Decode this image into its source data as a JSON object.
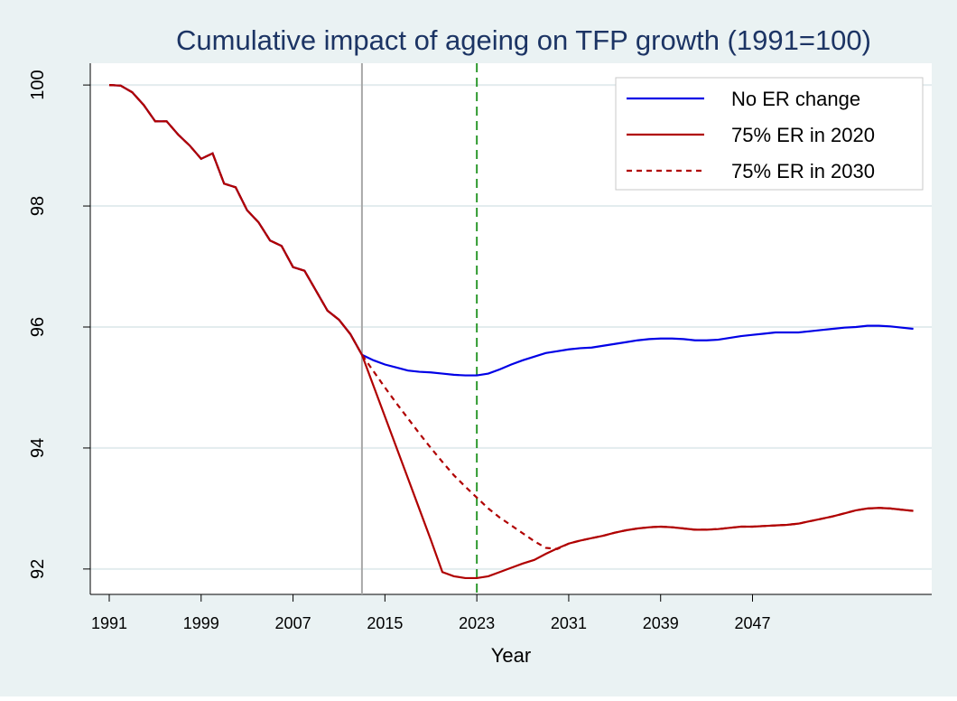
{
  "chart_data": {
    "type": "line",
    "title": "Cumulative impact of ageing on TFP growth (1991=100)",
    "x_label": "Year",
    "x": [
      1991,
      1992,
      1993,
      1994,
      1995,
      1996,
      1997,
      1998,
      1999,
      2000,
      2001,
      2002,
      2003,
      2004,
      2005,
      2006,
      2007,
      2008,
      2009,
      2010,
      2011,
      2012,
      2013,
      2014,
      2015,
      2016,
      2017,
      2018,
      2019,
      2020,
      2021,
      2022,
      2023,
      2024,
      2025,
      2026,
      2027,
      2028,
      2029,
      2030,
      2031,
      2032,
      2033,
      2034,
      2035,
      2036,
      2037,
      2038,
      2039,
      2040,
      2041,
      2042,
      2043,
      2044,
      2045,
      2046,
      2047,
      2048,
      2049,
      2050,
      2051,
      2052,
      2053,
      2054,
      2055,
      2056,
      2057,
      2058,
      2059,
      2060,
      2061
    ],
    "series": [
      {
        "name": "No ER change",
        "color": "#0000e6",
        "style": "solid",
        "values": [
          100,
          99.99,
          99.88,
          99.67,
          99.4,
          99.4,
          99.18,
          99.0,
          98.78,
          98.87,
          98.37,
          98.31,
          97.93,
          97.73,
          97.43,
          97.34,
          96.99,
          96.93,
          96.6,
          96.27,
          96.12,
          95.88,
          95.54,
          95.45,
          95.38,
          95.33,
          95.28,
          95.26,
          95.25,
          95.23,
          95.21,
          95.2,
          95.2,
          95.23,
          95.3,
          95.38,
          95.45,
          95.51,
          95.57,
          95.6,
          95.63,
          95.65,
          95.66,
          95.69,
          95.72,
          95.75,
          95.78,
          95.8,
          95.81,
          95.81,
          95.8,
          95.78,
          95.78,
          95.79,
          95.82,
          95.85,
          95.87,
          95.89,
          95.91,
          95.91,
          95.91,
          95.93,
          95.95,
          95.97,
          95.99,
          96.0,
          96.02,
          96.02,
          96.01,
          95.99,
          95.97
        ]
      },
      {
        "name": "75% ER in 2020",
        "color": "#b00000",
        "style": "solid",
        "values": [
          100,
          99.99,
          99.88,
          99.67,
          99.4,
          99.4,
          99.18,
          99.0,
          98.78,
          98.87,
          98.37,
          98.31,
          97.93,
          97.73,
          97.43,
          97.34,
          96.99,
          96.93,
          96.6,
          96.27,
          96.12,
          95.88,
          95.54,
          95.03,
          94.52,
          94.01,
          93.5,
          92.99,
          92.48,
          91.95,
          91.88,
          91.85,
          91.85,
          91.88,
          91.95,
          92.02,
          92.09,
          92.15,
          92.25,
          92.34,
          92.42,
          92.47,
          92.51,
          92.55,
          92.6,
          92.64,
          92.67,
          92.69,
          92.7,
          92.69,
          92.67,
          92.65,
          92.65,
          92.66,
          92.68,
          92.7,
          92.7,
          92.71,
          92.72,
          92.73,
          92.75,
          92.79,
          92.83,
          92.87,
          92.92,
          92.97,
          93.0,
          93.01,
          93.0,
          92.98,
          92.96
        ]
      },
      {
        "name": "75% ER in 2030",
        "color": "#b00000",
        "style": "dashed",
        "values": [
          100,
          99.99,
          99.88,
          99.67,
          99.4,
          99.4,
          99.18,
          99.0,
          98.78,
          98.87,
          98.37,
          98.31,
          97.93,
          97.73,
          97.43,
          97.34,
          96.99,
          96.93,
          96.6,
          96.27,
          96.12,
          95.88,
          95.54,
          95.27,
          95.0,
          94.74,
          94.49,
          94.24,
          94.0,
          93.77,
          93.55,
          93.36,
          93.18,
          93.0,
          92.85,
          92.72,
          92.59,
          92.46,
          92.35,
          92.33,
          92.42,
          92.47,
          92.51,
          92.55,
          92.6,
          92.64,
          92.67,
          92.69,
          92.7,
          92.69,
          92.67,
          92.65,
          92.65,
          92.66,
          92.68,
          92.7,
          92.7,
          92.71,
          92.72,
          92.73,
          92.75,
          92.79,
          92.83,
          92.87,
          92.92,
          92.97,
          93.0,
          93.01,
          93.0,
          92.98,
          92.96
        ]
      }
    ],
    "xlines": [
      {
        "value": 2013,
        "color": "#a8a8a8",
        "style": "solid"
      },
      {
        "value": 2023,
        "color": "#2e9a2e",
        "style": "dashed"
      }
    ],
    "xlim": [
      1989.35,
      2062.6
    ],
    "ylim": [
      91.58,
      100.36
    ],
    "xticks": [
      1991,
      1999,
      2007,
      2015,
      2023,
      2031,
      2039,
      2047
    ],
    "yticks": [
      92,
      94,
      96,
      98,
      100
    ],
    "grid": true,
    "legend": "top-right"
  }
}
